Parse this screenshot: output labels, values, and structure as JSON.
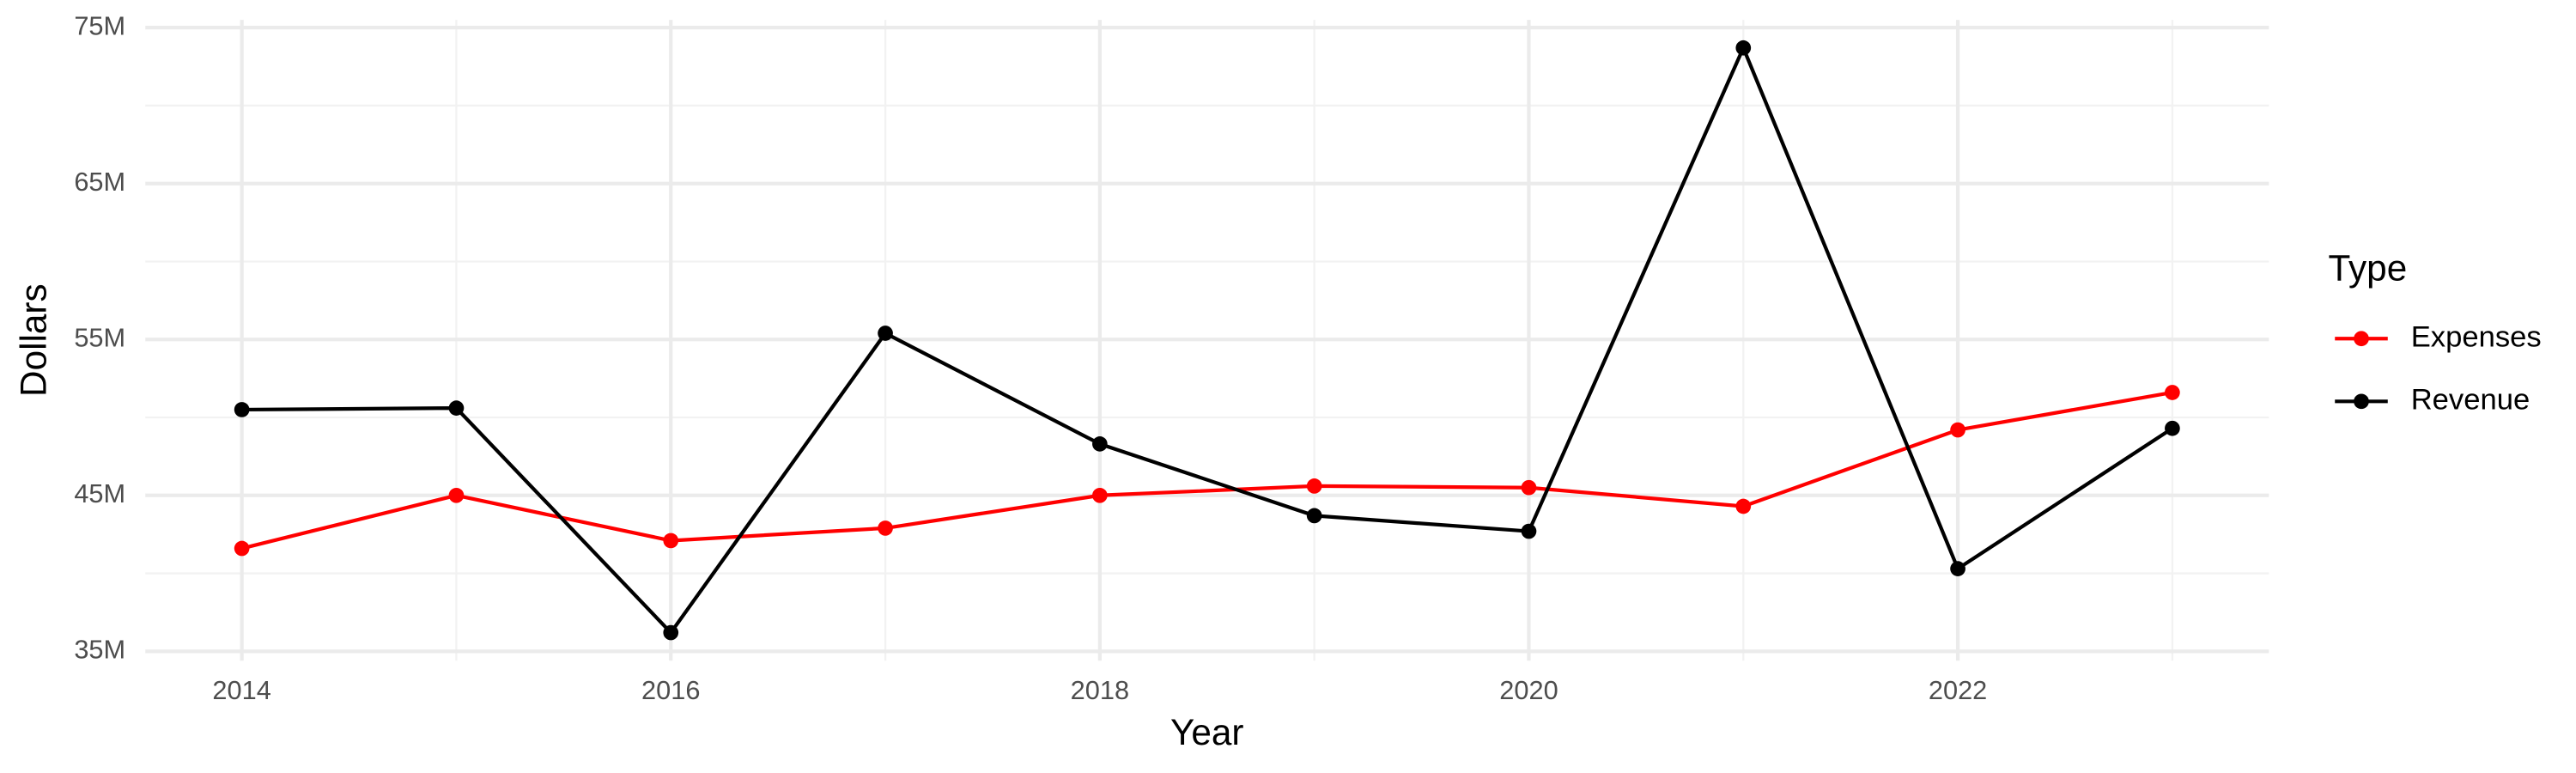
{
  "chart_data": {
    "type": "line",
    "x_label": "Year",
    "y_label": "Dollars",
    "x": [
      2014,
      2015,
      2016,
      2017,
      2018,
      2019,
      2020,
      2021,
      2022,
      2023
    ],
    "series": [
      {
        "name": "Expenses",
        "color": "#ff0000",
        "values": [
          41600000,
          45000000,
          42100000,
          42900000,
          45000000,
          45600000,
          45500000,
          44300000,
          49200000,
          51600000
        ]
      },
      {
        "name": "Revenue",
        "color": "#000000",
        "values": [
          50500000,
          50600000,
          36200000,
          55400000,
          48300000,
          43700000,
          42700000,
          73700000,
          40300000,
          49300000
        ]
      }
    ],
    "xlim": [
      2013.55,
      2023.45
    ],
    "xticks": [
      2014,
      2016,
      2018,
      2020,
      2022
    ],
    "ylim": [
      34400000,
      75500000
    ],
    "yticks": [
      {
        "value": 35000000,
        "label": "35M"
      },
      {
        "value": 45000000,
        "label": "45M"
      },
      {
        "value": 55000000,
        "label": "55M"
      },
      {
        "value": 65000000,
        "label": "65M"
      },
      {
        "value": 75000000,
        "label": "75M"
      }
    ],
    "grid": true,
    "legend_title": "Type",
    "legend_position": "right"
  }
}
